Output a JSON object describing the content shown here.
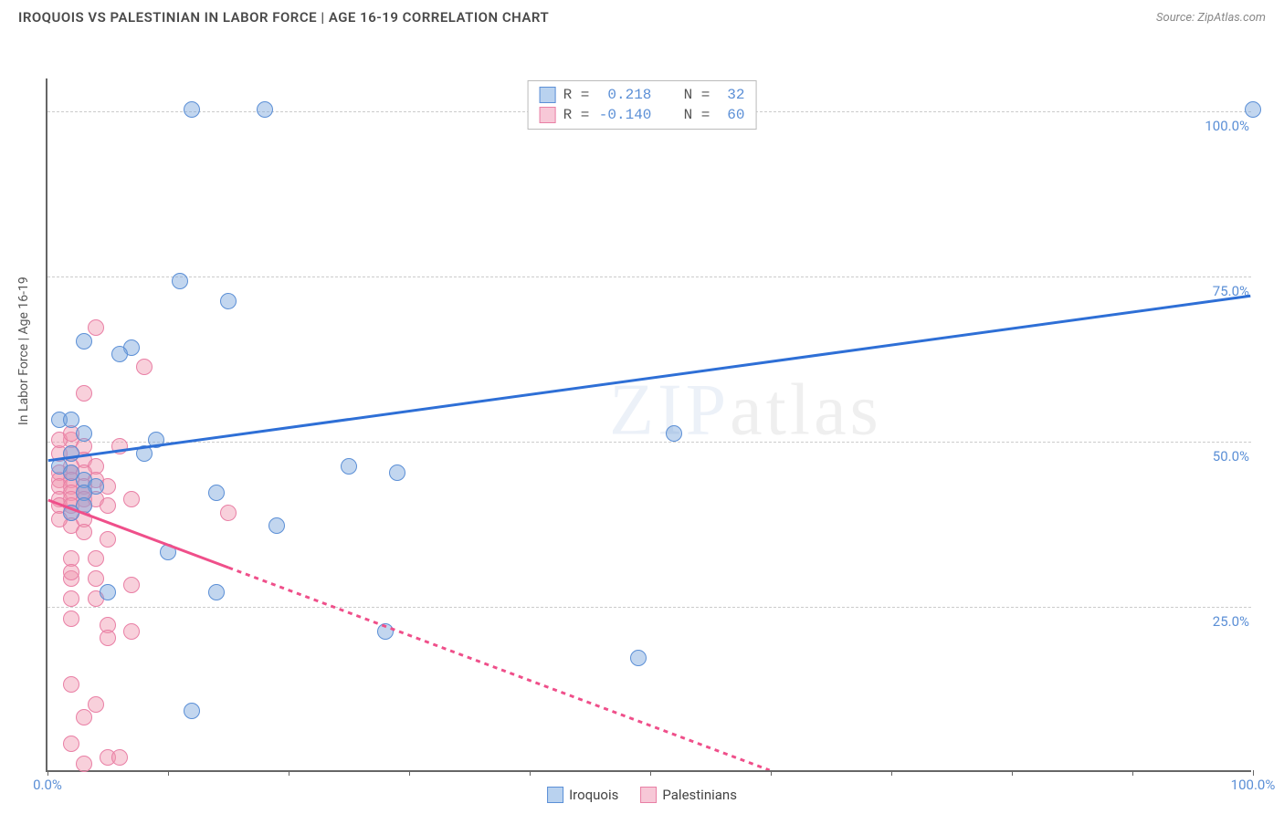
{
  "header": {
    "title": "IROQUOIS VS PALESTINIAN IN LABOR FORCE | AGE 16-19 CORRELATION CHART",
    "source": "Source: ZipAtlas.com"
  },
  "watermark": {
    "text_bold": "ZIP",
    "text_thin": "atlas"
  },
  "chart": {
    "type": "scatter",
    "y_axis_label": "In Labor Force | Age 16-19",
    "xlim": [
      0,
      100
    ],
    "ylim": [
      0,
      105
    ],
    "x_ticks": [
      0,
      10,
      20,
      30,
      40,
      50,
      60,
      70,
      80,
      90,
      100
    ],
    "x_tick_labels": {
      "0": "0.0%",
      "100": "100.0%"
    },
    "y_gridlines": [
      25,
      50,
      75,
      100
    ],
    "y_tick_labels": {
      "25": "25.0%",
      "50": "50.0%",
      "75": "75.0%",
      "100": "100.0%"
    },
    "background_color": "#ffffff",
    "grid_color": "#cccccc",
    "axis_color": "#666666",
    "tick_label_color": "#5b8fd6",
    "series": {
      "iroquois": {
        "label": "Iroquois",
        "marker_fill": "rgba(120,165,220,0.45)",
        "marker_stroke": "#5b8fd6",
        "marker_size": 18,
        "line_color": "#2e6fd6",
        "line_width": 3,
        "line_dash": "solid",
        "swatch_fill": "#b9d2ef",
        "swatch_stroke": "#5b8fd6",
        "regression": {
          "x1": 0,
          "y1": 47,
          "x2": 100,
          "y2": 72,
          "extrapolate_from_x": 0
        },
        "points": [
          [
            12,
            100
          ],
          [
            18,
            100
          ],
          [
            100,
            100
          ],
          [
            11,
            74
          ],
          [
            15,
            71
          ],
          [
            3,
            65
          ],
          [
            7,
            64
          ],
          [
            6,
            63
          ],
          [
            1,
            53
          ],
          [
            2,
            53
          ],
          [
            3,
            51
          ],
          [
            9,
            50
          ],
          [
            52,
            51
          ],
          [
            2,
            48
          ],
          [
            8,
            48
          ],
          [
            25,
            46
          ],
          [
            29,
            45
          ],
          [
            3,
            44
          ],
          [
            4,
            43
          ],
          [
            3,
            42
          ],
          [
            14,
            42
          ],
          [
            3,
            40
          ],
          [
            2,
            39
          ],
          [
            19,
            37
          ],
          [
            10,
            33
          ],
          [
            49,
            17
          ],
          [
            5,
            27
          ],
          [
            14,
            27
          ],
          [
            28,
            21
          ],
          [
            12,
            9
          ],
          [
            1,
            46
          ],
          [
            2,
            45
          ]
        ]
      },
      "palestinians": {
        "label": "Palestinians",
        "marker_fill": "rgba(240,150,175,0.45)",
        "marker_stroke": "#e97fa5",
        "marker_size": 18,
        "line_color": "#ef4f8a",
        "line_width": 3,
        "line_dash": "solid",
        "line_dash_extrapolate": "5,5",
        "swatch_fill": "#f7c8d7",
        "swatch_stroke": "#e97fa5",
        "regression": {
          "x1": 0,
          "y1": 41,
          "x2": 60,
          "y2": 0,
          "extrapolate_from_x": 15
        },
        "points": [
          [
            4,
            67
          ],
          [
            8,
            61
          ],
          [
            3,
            57
          ],
          [
            2,
            50
          ],
          [
            3,
            49
          ],
          [
            6,
            49
          ],
          [
            1,
            48
          ],
          [
            2,
            48
          ],
          [
            3,
            47
          ],
          [
            2,
            46
          ],
          [
            4,
            46
          ],
          [
            1,
            45
          ],
          [
            2,
            45
          ],
          [
            3,
            45
          ],
          [
            1,
            44
          ],
          [
            2,
            44
          ],
          [
            4,
            44
          ],
          [
            1,
            43
          ],
          [
            2,
            43
          ],
          [
            3,
            43
          ],
          [
            5,
            43
          ],
          [
            2,
            42
          ],
          [
            3,
            42
          ],
          [
            1,
            41
          ],
          [
            2,
            41
          ],
          [
            3,
            41
          ],
          [
            4,
            41
          ],
          [
            1,
            40
          ],
          [
            2,
            40
          ],
          [
            3,
            40
          ],
          [
            5,
            40
          ],
          [
            15,
            39
          ],
          [
            7,
            41
          ],
          [
            2,
            39
          ],
          [
            3,
            38
          ],
          [
            2,
            37
          ],
          [
            3,
            36
          ],
          [
            5,
            35
          ],
          [
            4,
            32
          ],
          [
            2,
            32
          ],
          [
            2,
            29
          ],
          [
            4,
            29
          ],
          [
            7,
            28
          ],
          [
            2,
            26
          ],
          [
            4,
            26
          ],
          [
            2,
            23
          ],
          [
            5,
            22
          ],
          [
            7,
            21
          ],
          [
            5,
            20
          ],
          [
            2,
            13
          ],
          [
            4,
            10
          ],
          [
            3,
            8
          ],
          [
            2,
            4
          ],
          [
            5,
            2
          ],
          [
            6,
            2
          ],
          [
            3,
            1
          ],
          [
            1,
            50
          ],
          [
            2,
            51
          ],
          [
            1,
            38
          ],
          [
            2,
            30
          ]
        ]
      }
    },
    "legend_top": [
      {
        "series": "iroquois",
        "r": "0.218",
        "n": "32"
      },
      {
        "series": "palestinians",
        "r": "-0.140",
        "n": "60"
      }
    ],
    "legend_bottom_order": [
      "iroquois",
      "palestinians"
    ]
  }
}
